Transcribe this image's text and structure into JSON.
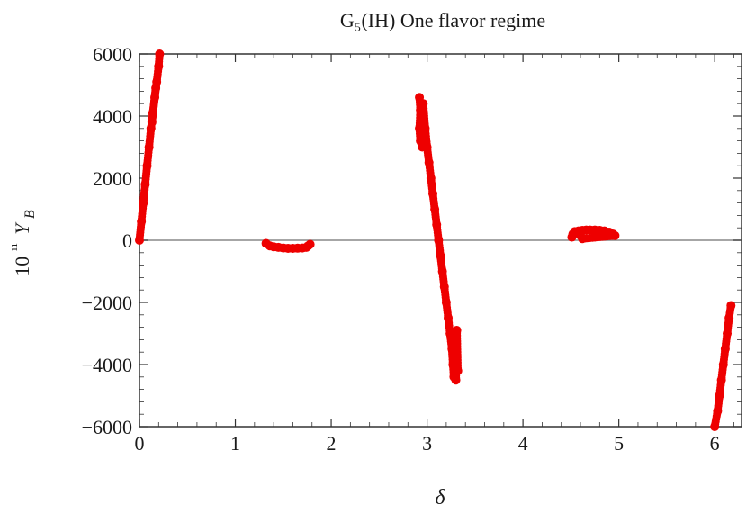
{
  "chart_data": {
    "type": "scatter",
    "title": "G₅(IH) One flavor regime",
    "xlabel": "δ",
    "ylabel": "10¹¹ Y_B",
    "xlim": [
      0,
      6.28
    ],
    "ylim": [
      -6000,
      6000
    ],
    "x_ticks": [
      0,
      1,
      2,
      3,
      4,
      5,
      6
    ],
    "y_ticks": [
      6000,
      4000,
      2000,
      0,
      -2000,
      -4000,
      -6000
    ],
    "x_tick_labels": [
      "0",
      "1",
      "2",
      "3",
      "4",
      "5",
      "6"
    ],
    "y_tick_labels": [
      "6000",
      "4000",
      "2000",
      "0",
      "−2000",
      "−4000",
      "−6000"
    ],
    "grid": false,
    "zero_line": true,
    "marker_color": "#ee0000",
    "series": [
      {
        "points": [
          [
            0.0,
            0
          ],
          [
            0.02,
            600
          ],
          [
            0.04,
            1200
          ],
          [
            0.06,
            1800
          ],
          [
            0.08,
            2400
          ],
          [
            0.1,
            3000
          ],
          [
            0.12,
            3600
          ],
          [
            0.14,
            4100
          ],
          [
            0.16,
            4600
          ],
          [
            0.18,
            5100
          ],
          [
            0.2,
            5600
          ],
          [
            0.21,
            6000
          ],
          [
            0.13,
            3800
          ],
          [
            0.17,
            4900
          ]
        ]
      },
      {
        "points": [
          [
            1.32,
            -100
          ],
          [
            1.36,
            -180
          ],
          [
            1.4,
            -210
          ],
          [
            1.45,
            -230
          ],
          [
            1.5,
            -250
          ],
          [
            1.55,
            -260
          ],
          [
            1.6,
            -260
          ],
          [
            1.65,
            -255
          ],
          [
            1.7,
            -250
          ],
          [
            1.74,
            -230
          ],
          [
            1.76,
            -180
          ],
          [
            1.78,
            -130
          ]
        ]
      },
      {
        "points": [
          [
            2.92,
            4600
          ],
          [
            2.93,
            4200
          ],
          [
            2.92,
            3600
          ],
          [
            2.93,
            3200
          ],
          [
            2.95,
            3000
          ],
          [
            2.96,
            4400
          ],
          [
            2.98,
            3600
          ],
          [
            3.0,
            3000
          ],
          [
            3.02,
            2500
          ],
          [
            3.04,
            2000
          ],
          [
            3.06,
            1500
          ],
          [
            3.08,
            1000
          ],
          [
            3.1,
            500
          ],
          [
            3.12,
            0
          ],
          [
            3.14,
            -500
          ],
          [
            3.16,
            -1000
          ],
          [
            3.18,
            -1500
          ],
          [
            3.2,
            -2000
          ],
          [
            3.22,
            -2500
          ],
          [
            3.24,
            -3000
          ],
          [
            3.26,
            -3500
          ],
          [
            3.27,
            -4000
          ],
          [
            3.28,
            -4400
          ],
          [
            3.3,
            -4500
          ],
          [
            3.31,
            -3800
          ],
          [
            3.3,
            -3200
          ],
          [
            3.31,
            -2900
          ],
          [
            3.32,
            -4200
          ]
        ]
      },
      {
        "points": [
          [
            4.51,
            100
          ],
          [
            4.52,
            200
          ],
          [
            4.54,
            280
          ],
          [
            4.58,
            300
          ],
          [
            4.62,
            320
          ],
          [
            4.66,
            330
          ],
          [
            4.7,
            330
          ],
          [
            4.75,
            330
          ],
          [
            4.8,
            320
          ],
          [
            4.85,
            300
          ],
          [
            4.9,
            260
          ],
          [
            4.94,
            200
          ],
          [
            4.96,
            150
          ],
          [
            4.62,
            50
          ],
          [
            4.6,
            150
          ]
        ]
      },
      {
        "points": [
          [
            6.0,
            -6000
          ],
          [
            6.03,
            -5500
          ],
          [
            6.05,
            -5000
          ],
          [
            6.07,
            -4500
          ],
          [
            6.09,
            -4000
          ],
          [
            6.11,
            -3500
          ],
          [
            6.13,
            -3000
          ],
          [
            6.15,
            -2500
          ],
          [
            6.17,
            -2100
          ]
        ]
      }
    ]
  }
}
